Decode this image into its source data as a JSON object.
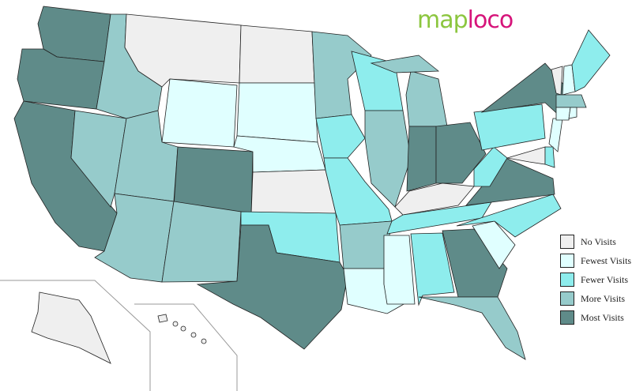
{
  "logo": {
    "part1": "map",
    "part2": "loco"
  },
  "legend": [
    {
      "key": "none",
      "label": "No Visits",
      "color": "#efefef"
    },
    {
      "key": "fewest",
      "label": "Fewest Visits",
      "color": "#e0ffff"
    },
    {
      "key": "fewer",
      "label": "Fewer Visits",
      "color": "#8eeded"
    },
    {
      "key": "more",
      "label": "More Visits",
      "color": "#96cbcb"
    },
    {
      "key": "most",
      "label": "Most Visits",
      "color": "#5f8b89"
    }
  ],
  "states": [
    {
      "id": "WA",
      "level": "most"
    },
    {
      "id": "OR",
      "level": "most"
    },
    {
      "id": "CA",
      "level": "most"
    },
    {
      "id": "NV",
      "level": "more"
    },
    {
      "id": "ID",
      "level": "more"
    },
    {
      "id": "MT",
      "level": "none"
    },
    {
      "id": "WY",
      "level": "fewest"
    },
    {
      "id": "UT",
      "level": "more"
    },
    {
      "id": "CO",
      "level": "most"
    },
    {
      "id": "AZ",
      "level": "more"
    },
    {
      "id": "NM",
      "level": "more"
    },
    {
      "id": "ND",
      "level": "none"
    },
    {
      "id": "SD",
      "level": "fewest"
    },
    {
      "id": "NE",
      "level": "fewest"
    },
    {
      "id": "KS",
      "level": "none"
    },
    {
      "id": "OK",
      "level": "fewer"
    },
    {
      "id": "TX",
      "level": "most"
    },
    {
      "id": "MN",
      "level": "more"
    },
    {
      "id": "IA",
      "level": "fewer"
    },
    {
      "id": "MO",
      "level": "fewer"
    },
    {
      "id": "AR",
      "level": "more"
    },
    {
      "id": "LA",
      "level": "fewest"
    },
    {
      "id": "WI",
      "level": "fewer"
    },
    {
      "id": "IL",
      "level": "more"
    },
    {
      "id": "MI",
      "level": "more"
    },
    {
      "id": "MI-UP",
      "level": "more"
    },
    {
      "id": "IN",
      "level": "most"
    },
    {
      "id": "OH",
      "level": "most"
    },
    {
      "id": "KY",
      "level": "none"
    },
    {
      "id": "TN",
      "level": "fewer"
    },
    {
      "id": "MS",
      "level": "fewest"
    },
    {
      "id": "AL",
      "level": "fewer"
    },
    {
      "id": "GA",
      "level": "most"
    },
    {
      "id": "FL",
      "level": "more"
    },
    {
      "id": "SC",
      "level": "fewest"
    },
    {
      "id": "NC",
      "level": "fewer"
    },
    {
      "id": "VA",
      "level": "most"
    },
    {
      "id": "WV",
      "level": "fewer"
    },
    {
      "id": "PA",
      "level": "fewer"
    },
    {
      "id": "NY",
      "level": "most"
    },
    {
      "id": "NJ",
      "level": "fewest"
    },
    {
      "id": "MD",
      "level": "none"
    },
    {
      "id": "DE",
      "level": "fewer"
    },
    {
      "id": "VT",
      "level": "none"
    },
    {
      "id": "NH",
      "level": "fewest"
    },
    {
      "id": "ME",
      "level": "fewer"
    },
    {
      "id": "MA",
      "level": "more"
    },
    {
      "id": "CT",
      "level": "fewest"
    },
    {
      "id": "RI",
      "level": "fewest"
    },
    {
      "id": "AK",
      "level": "none"
    },
    {
      "id": "HI",
      "level": "none"
    }
  ]
}
